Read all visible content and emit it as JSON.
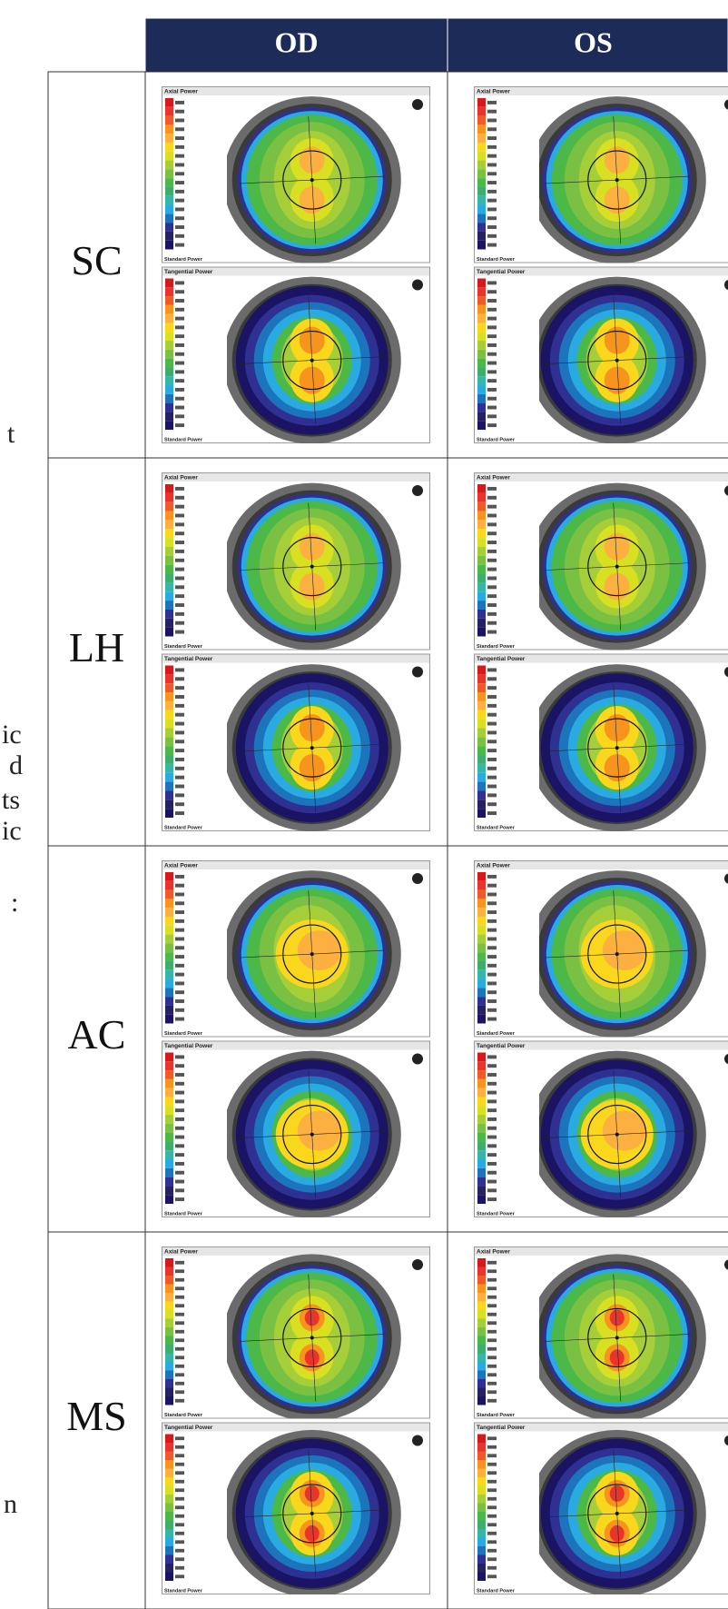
{
  "table": {
    "headers": [
      "OD",
      "OS"
    ],
    "rows": [
      {
        "label": "SC"
      },
      {
        "label": "LH"
      },
      {
        "label": "AC"
      },
      {
        "label": "MS"
      }
    ],
    "panel_titles": [
      "Axial Power",
      "Tangential Power"
    ],
    "panel_footer": "Standard Power"
  },
  "margin_text": [
    "t",
    "ic",
    "d",
    "ts",
    "ic",
    ":",
    "n"
  ]
}
